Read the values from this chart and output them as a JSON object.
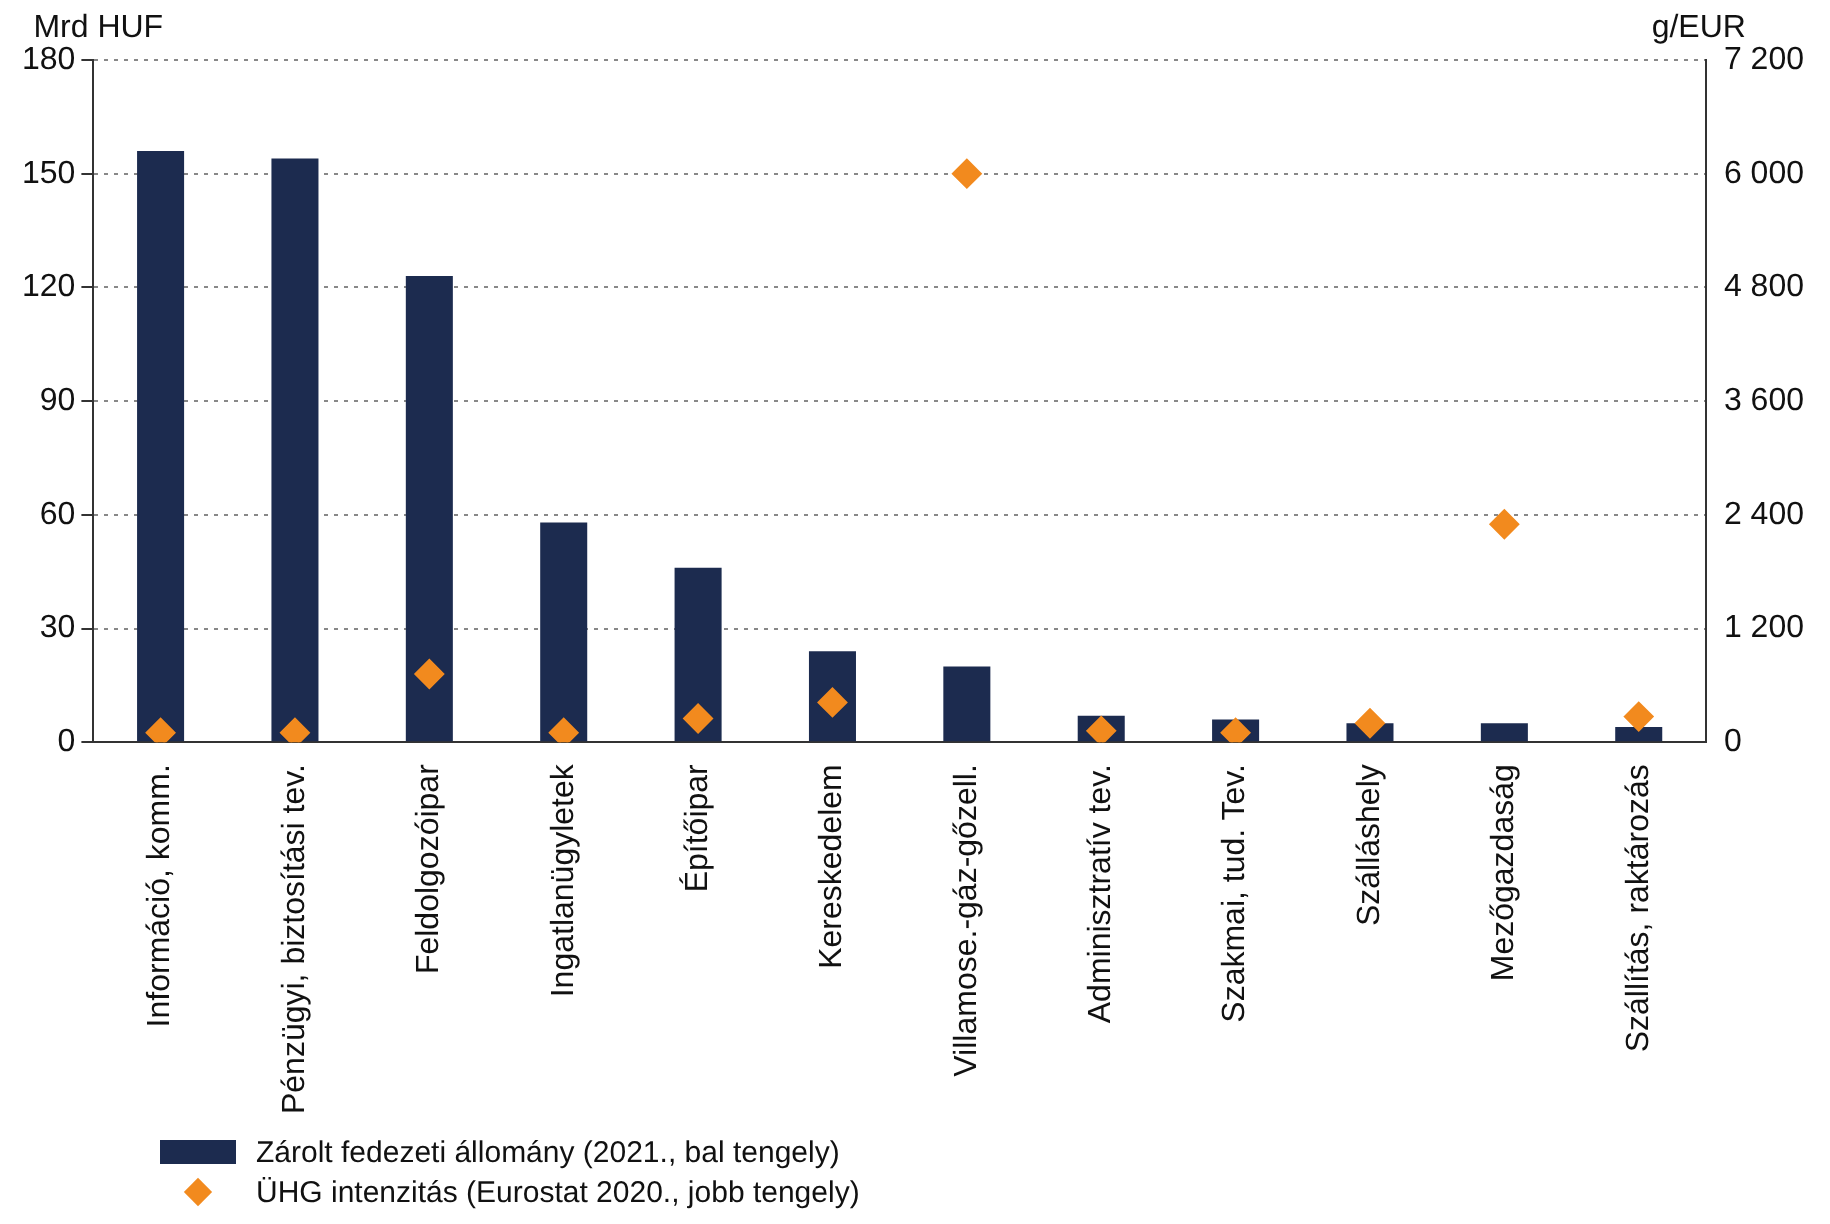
{
  "chart_data": {
    "type": "bar",
    "ylabel": "Mrd HUF",
    "y2label": "g/EUR",
    "categories": [
      "Információ, komm.",
      "Pénzügyi, biztosítási tev.",
      "Feldolgozóipar",
      "Ingatlanügyletek",
      "Építőipar",
      "Kereskedelem",
      "Villamose.-gáz-gőzell.",
      "Adminisztratív tev.",
      "Szakmai, tud. Tev.",
      "Szálláshely",
      "Mezőgazdaság",
      "Szállítás, raktározás"
    ],
    "series": [
      {
        "name": "Zárolt fedezeti állomány (2021., bal tengely)",
        "color": "#1c2b4f",
        "values": [
          156,
          154,
          123,
          58,
          46,
          24,
          20,
          7,
          6,
          5,
          5,
          4
        ]
      },
      {
        "name": "ÜHG intenzitás (Eurostat 2020., jobb tengely)",
        "type": "scatter",
        "axis": "y2",
        "marker": "diamond",
        "color": "#f28a1e",
        "values": [
          100,
          100,
          720,
          100,
          250,
          420,
          6000,
          120,
          100,
          200,
          2300,
          270
        ]
      }
    ],
    "ylim": [
      0,
      180
    ],
    "yticks": [
      0,
      30,
      60,
      90,
      120,
      150,
      180
    ],
    "y2lim": [
      0,
      7200
    ],
    "y2ticks": [
      0,
      {
        "value": 1200,
        "label": "1 200"
      },
      {
        "value": 2400,
        "label": "2 400"
      },
      {
        "value": 3600,
        "label": "3 600"
      },
      {
        "value": 4800,
        "label": "4 800"
      },
      {
        "value": 6000,
        "label": "6 000"
      },
      {
        "value": 7200,
        "label": "7 200"
      }
    ],
    "grid": "y",
    "legend": "bottom left"
  }
}
